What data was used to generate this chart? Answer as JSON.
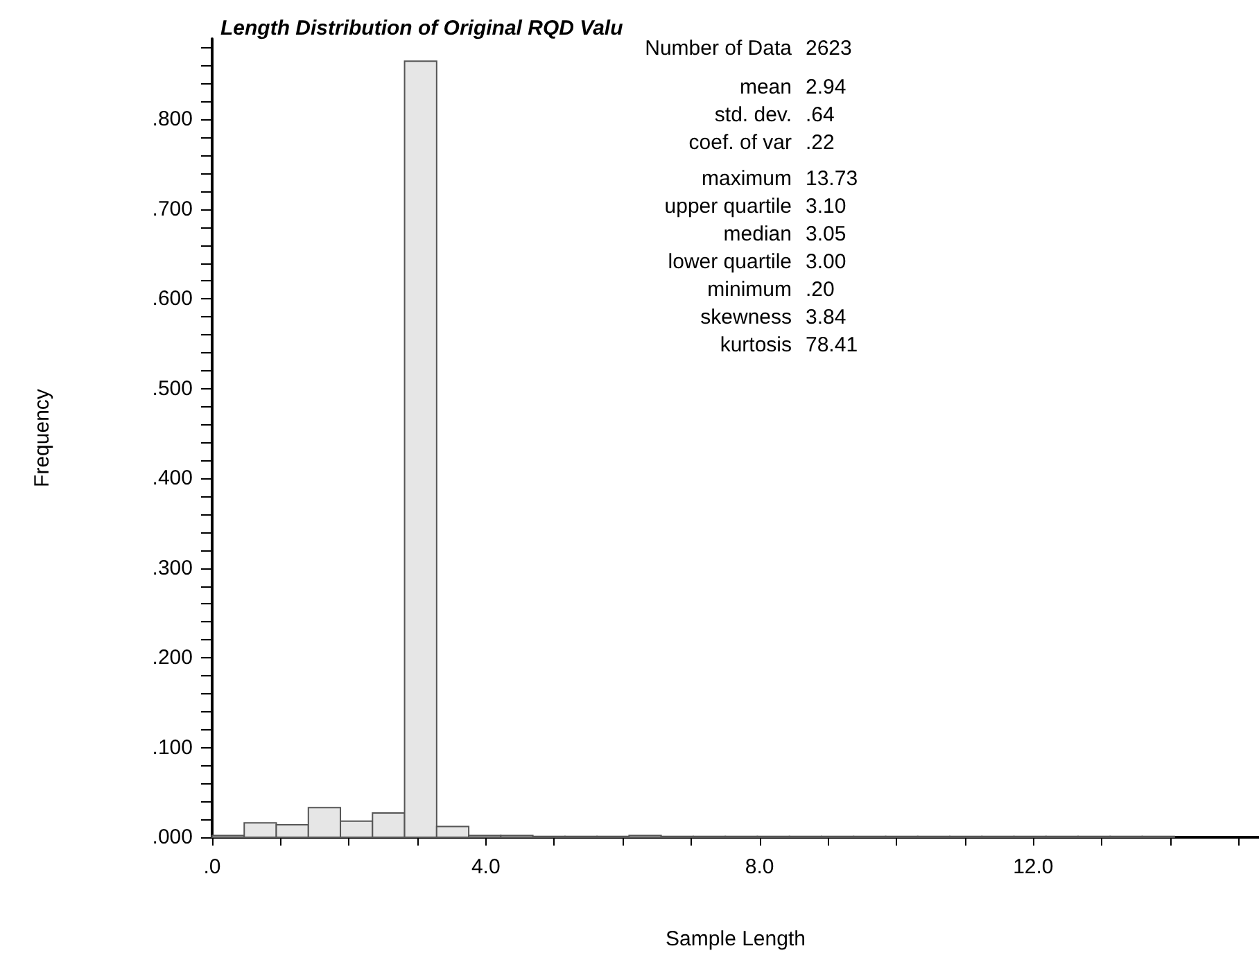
{
  "chart_data": {
    "type": "histogram",
    "title": "Length Distribution of Original RQD Valu",
    "xlabel": "Sample Length",
    "ylabel": "Frequency",
    "bins": [
      0,
      0.46875,
      0.9375,
      1.40625,
      1.875,
      2.34375,
      2.8125,
      3.28125,
      3.75,
      4.21875,
      4.6875,
      5.15625,
      5.625,
      6.09375,
      6.5625,
      7.03125,
      7.5,
      7.96875,
      8.4375,
      8.90625,
      9.375,
      9.84375,
      10.3125,
      10.78125,
      11.25,
      11.71875,
      12.1875,
      12.65625,
      13.125,
      13.59375,
      14.0625
    ],
    "values": [
      0.002,
      0.016,
      0.014,
      0.033,
      0.018,
      0.027,
      0.865,
      0.012,
      0.002,
      0.002,
      0.001,
      0.001,
      0.001,
      0.002,
      0.001,
      0.001,
      0.001,
      0.001,
      0.001,
      0.001,
      0.001,
      0.001,
      0.001,
      0.001,
      0.001,
      0.001,
      0.001,
      0.001,
      0.001,
      0.001
    ],
    "color": "#e6e6e6",
    "xlim": [
      0,
      15.3
    ],
    "ylim": [
      0,
      0.89
    ],
    "xticks": [
      {
        "value": 0,
        "label": ".0"
      },
      {
        "value": 1,
        "label": null
      },
      {
        "value": 2,
        "label": null
      },
      {
        "value": 3,
        "label": null
      },
      {
        "value": 4,
        "label": "4.0"
      },
      {
        "value": 5,
        "label": null
      },
      {
        "value": 6,
        "label": null
      },
      {
        "value": 7,
        "label": null
      },
      {
        "value": 8,
        "label": "8.0"
      },
      {
        "value": 9,
        "label": null
      },
      {
        "value": 10,
        "label": null
      },
      {
        "value": 11,
        "label": null
      },
      {
        "value": 12,
        "label": "12.0"
      },
      {
        "value": 13,
        "label": null
      },
      {
        "value": 14,
        "label": null
      },
      {
        "value": 15,
        "label": null
      }
    ],
    "yticks": [
      {
        "value": 0,
        "label": ".000"
      },
      {
        "value": 0.02,
        "label": null
      },
      {
        "value": 0.04,
        "label": null
      },
      {
        "value": 0.06,
        "label": null
      },
      {
        "value": 0.08,
        "label": null
      },
      {
        "value": 0.1,
        "label": ".100"
      },
      {
        "value": 0.12,
        "label": null
      },
      {
        "value": 0.14,
        "label": null
      },
      {
        "value": 0.16,
        "label": null
      },
      {
        "value": 0.18,
        "label": null
      },
      {
        "value": 0.2,
        "label": ".200"
      },
      {
        "value": 0.22,
        "label": null
      },
      {
        "value": 0.24,
        "label": null
      },
      {
        "value": 0.26,
        "label": null
      },
      {
        "value": 0.28,
        "label": null
      },
      {
        "value": 0.3,
        "label": ".300"
      },
      {
        "value": 0.32,
        "label": null
      },
      {
        "value": 0.34,
        "label": null
      },
      {
        "value": 0.36,
        "label": null
      },
      {
        "value": 0.38,
        "label": null
      },
      {
        "value": 0.4,
        "label": ".400"
      },
      {
        "value": 0.42,
        "label": null
      },
      {
        "value": 0.44,
        "label": null
      },
      {
        "value": 0.46,
        "label": null
      },
      {
        "value": 0.48,
        "label": null
      },
      {
        "value": 0.5,
        "label": ".500"
      },
      {
        "value": 0.52,
        "label": null
      },
      {
        "value": 0.54,
        "label": null
      },
      {
        "value": 0.56,
        "label": null
      },
      {
        "value": 0.58,
        "label": null
      },
      {
        "value": 0.6,
        "label": ".600"
      },
      {
        "value": 0.62,
        "label": null
      },
      {
        "value": 0.64,
        "label": null
      },
      {
        "value": 0.66,
        "label": null
      },
      {
        "value": 0.68,
        "label": null
      },
      {
        "value": 0.7,
        "label": ".700"
      },
      {
        "value": 0.72,
        "label": null
      },
      {
        "value": 0.74,
        "label": null
      },
      {
        "value": 0.76,
        "label": null
      },
      {
        "value": 0.78,
        "label": null
      },
      {
        "value": 0.8,
        "label": ".800"
      },
      {
        "value": 0.82,
        "label": null
      },
      {
        "value": 0.84,
        "label": null
      },
      {
        "value": 0.86,
        "label": null
      },
      {
        "value": 0.88,
        "label": null
      }
    ],
    "grid": false,
    "annotations": [
      "Number of Data  2623",
      "mean  2.94",
      "std. dev.  .64",
      "coef. of var  .22",
      "maximum  13.73",
      "upper quartile  3.10",
      "median  3.05",
      "lower quartile  3.00",
      "minimum  .20",
      "skewness  3.84",
      "kurtosis  78.41"
    ]
  }
}
